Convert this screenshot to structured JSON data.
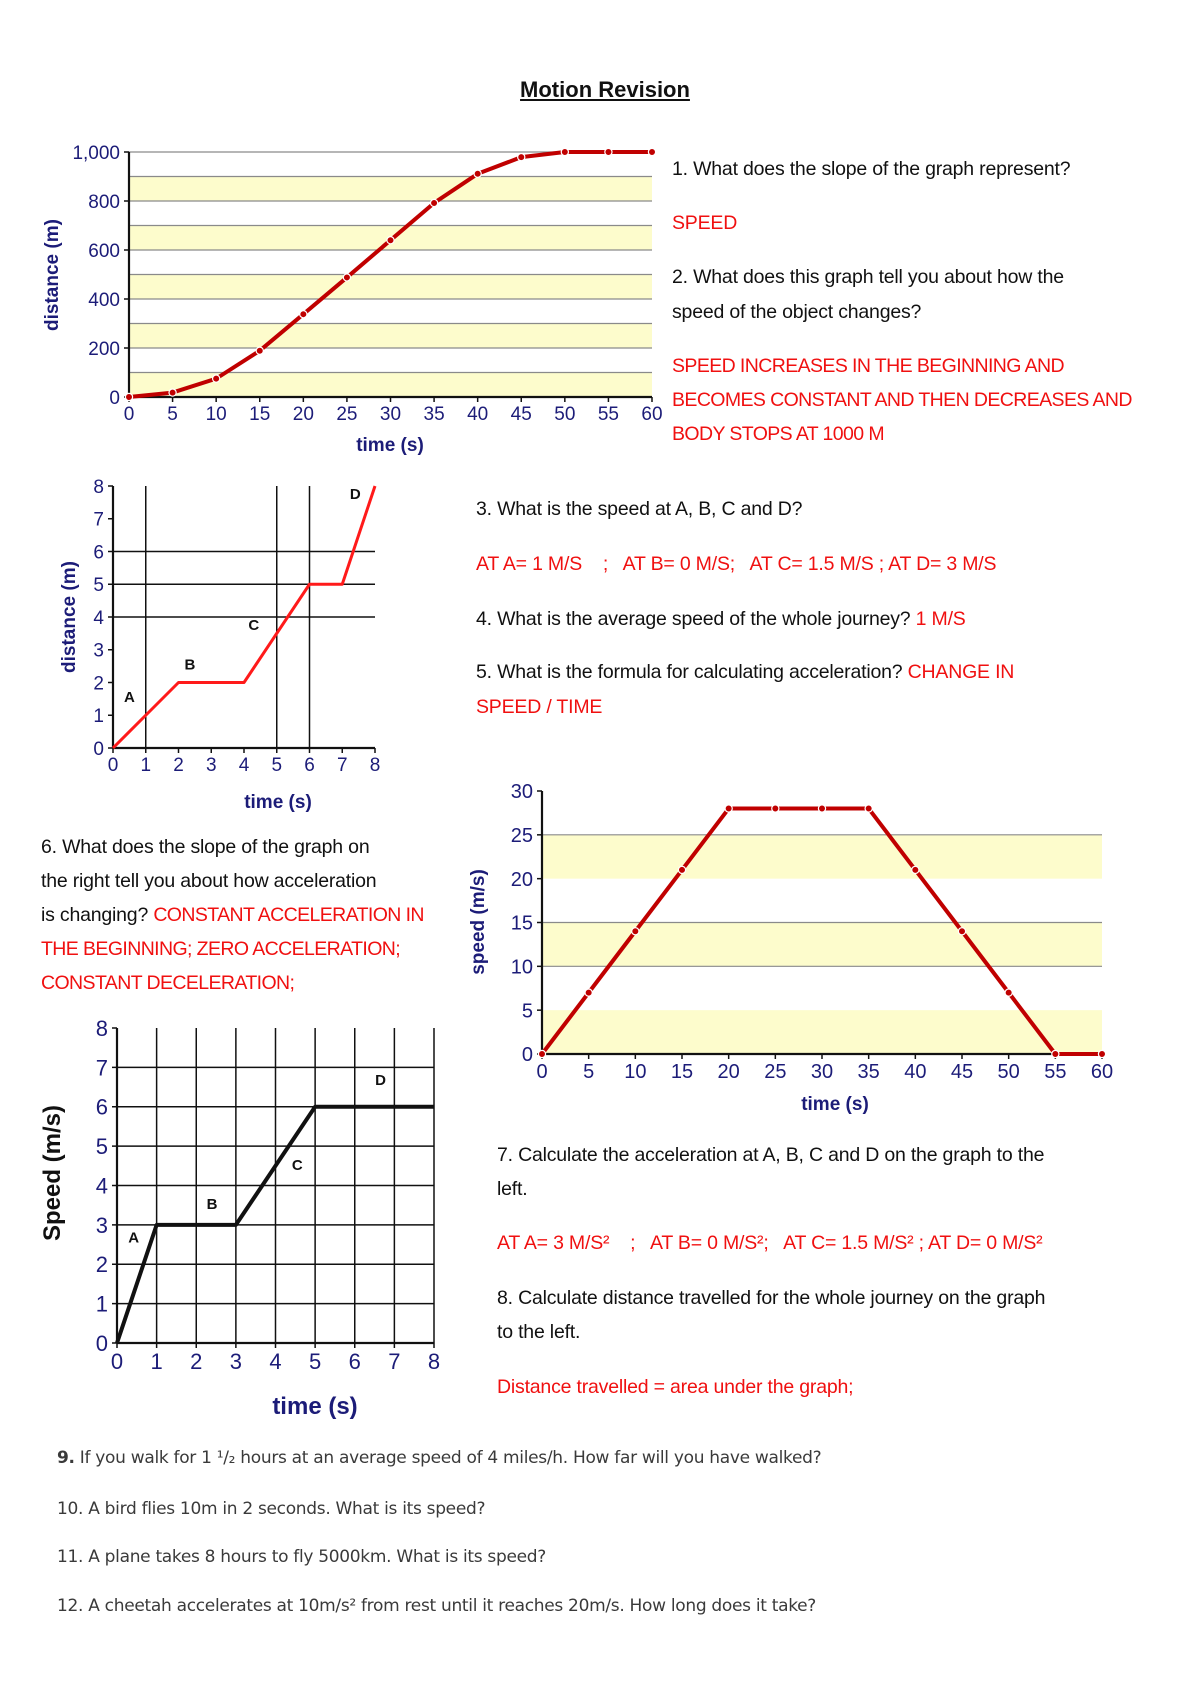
{
  "title": "Motion Revision",
  "colors": {
    "answer": "#f01010",
    "axis_text": "#1c1c78",
    "band": "#fdfccc",
    "curve": "#c00000",
    "line_red": "#ff1a1a"
  },
  "q1": {
    "question": "1. What does the slope of the graph represent?",
    "answer": "SPEED"
  },
  "q2": {
    "question_lines": [
      "2. What does this graph tell you about how the",
      "speed of the object changes?"
    ],
    "answer_lines": [
      "SPEED INCREASES IN THE BEGINNING AND",
      "BECOMES CONSTANT AND THEN DECREASES AND",
      "BODY STOPS AT 1000 M"
    ]
  },
  "q3": {
    "question": "3. What is the speed at A, B, C and D?",
    "answer": "AT A= 1 M/S    ;   AT B= 0 M/S;   AT C= 1.5 M/S ; AT D= 3 M/S"
  },
  "q4": {
    "question": "4. What is the average speed of the whole journey?",
    "answer": "1 M/S"
  },
  "q5": {
    "question": "5. What is the formula for calculating acceleration?",
    "answer_lines": [
      "CHANGE IN",
      "SPEED / TIME"
    ]
  },
  "q6": {
    "question_lines": [
      "6. What does the slope of the graph on",
      "the right tell you about how acceleration",
      "is changing?"
    ],
    "answer_lines": [
      "CONSTANT ACCELERATION IN",
      "THE BEGINNING; ZERO ACCELERATION;",
      "CONSTANT DECELERATION;"
    ]
  },
  "q7": {
    "question_lines": [
      "7. Calculate the acceleration at A, B, C and D on the graph to the",
      "left."
    ],
    "answer": "AT A= 3 M/S²    ;   AT B= 0 M/S²;   AT C= 1.5 M/S² ; AT D= 0 M/S²"
  },
  "q8": {
    "question_lines": [
      "8. Calculate distance travelled for the whole journey on the graph",
      "to the left."
    ],
    "answer": "Distance travelled = area under the graph;"
  },
  "q9": {
    "number": "9.",
    "text": " If you walk for 1 ¹/₂ hours at an average speed of 4 miles/h. How far will you have walked?"
  },
  "q10": "10. A bird flies 10m in 2 seconds. What is its speed?",
  "q11": "11. A plane takes 8 hours to fly 5000km. What is its speed?",
  "q12": "12. A cheetah accelerates at 10m/s² from rest until it reaches 20m/s. How long does it take?",
  "chart_data": [
    {
      "type": "line",
      "xlabel": "time (s)",
      "ylabel": "distance (m)",
      "x": [
        0,
        5,
        10,
        15,
        20,
        25,
        30,
        35,
        40,
        45,
        50,
        55,
        60
      ],
      "y": [
        0,
        18,
        75,
        189,
        338,
        488,
        640,
        792,
        911,
        979,
        1000,
        1000,
        1000
      ],
      "xlim": [
        0,
        60
      ],
      "ylim": [
        0,
        1000
      ],
      "xticks": [
        "0",
        "5",
        "10",
        "15",
        "20",
        "25",
        "30",
        "35",
        "40",
        "45",
        "50",
        "55",
        "60"
      ],
      "yticks": [
        "0",
        "200",
        "400",
        "600",
        "800",
        "1,000"
      ],
      "grid": true,
      "bands": "alternating yellow every 100 m",
      "markers": true
    },
    {
      "type": "line",
      "xlabel": "time (s)",
      "ylabel": "distance (m)",
      "x": [
        0,
        1,
        2,
        4,
        5,
        6,
        7,
        8
      ],
      "y": [
        0,
        1,
        2,
        2,
        3.5,
        5,
        5,
        8
      ],
      "xlim": [
        0,
        8
      ],
      "ylim": [
        0,
        8
      ],
      "xticks": [
        "0",
        "1",
        "2",
        "3",
        "4",
        "5",
        "6",
        "7",
        "8"
      ],
      "yticks": [
        "0",
        "1",
        "2",
        "3",
        "4",
        "5",
        "6",
        "7",
        "8"
      ],
      "segment_labels": [
        {
          "text": "A",
          "x": 0.5,
          "y": 1.4
        },
        {
          "text": "B",
          "x": 2.35,
          "y": 2.4
        },
        {
          "text": "C",
          "x": 4.3,
          "y": 3.6
        },
        {
          "text": "D",
          "x": 7.4,
          "y": 7.6
        }
      ],
      "grid_x": [
        1,
        5,
        6
      ],
      "grid_y": [
        4,
        5,
        6
      ]
    },
    {
      "type": "line",
      "xlabel": "time (s)",
      "ylabel": "speed (m/s)",
      "x": [
        0,
        5,
        10,
        15,
        20,
        25,
        30,
        35,
        40,
        45,
        50,
        55,
        60
      ],
      "y": [
        0,
        7,
        14,
        21,
        28,
        28,
        28,
        28,
        21,
        14,
        7,
        0,
        0
      ],
      "xlim": [
        0,
        60
      ],
      "ylim": [
        0,
        30
      ],
      "xticks": [
        "0",
        "5",
        "10",
        "15",
        "20",
        "25",
        "30",
        "35",
        "40",
        "45",
        "50",
        "55",
        "60"
      ],
      "yticks": [
        "0",
        "5",
        "10",
        "15",
        "20",
        "25",
        "30"
      ],
      "grid": true,
      "bands": "yellow 0–5, 10–15, 20–25",
      "markers": true
    },
    {
      "type": "line",
      "xlabel": "time (s)",
      "ylabel": "Speed (m/s)",
      "x": [
        0,
        1,
        3,
        5,
        8
      ],
      "y": [
        0,
        3,
        3,
        6,
        6
      ],
      "xlim": [
        0,
        8
      ],
      "ylim": [
        0,
        8
      ],
      "xticks": [
        "0",
        "1",
        "2",
        "3",
        "4",
        "5",
        "6",
        "7",
        "8"
      ],
      "yticks": [
        "0",
        "1",
        "2",
        "3",
        "4",
        "5",
        "6",
        "7",
        "8"
      ],
      "segment_labels": [
        {
          "text": "A",
          "x": 0.42,
          "y": 2.55
        },
        {
          "text": "B",
          "x": 2.4,
          "y": 3.4
        },
        {
          "text": "C",
          "x": 4.55,
          "y": 4.4
        },
        {
          "text": "D",
          "x": 6.65,
          "y": 6.55
        }
      ],
      "grid": true
    }
  ]
}
